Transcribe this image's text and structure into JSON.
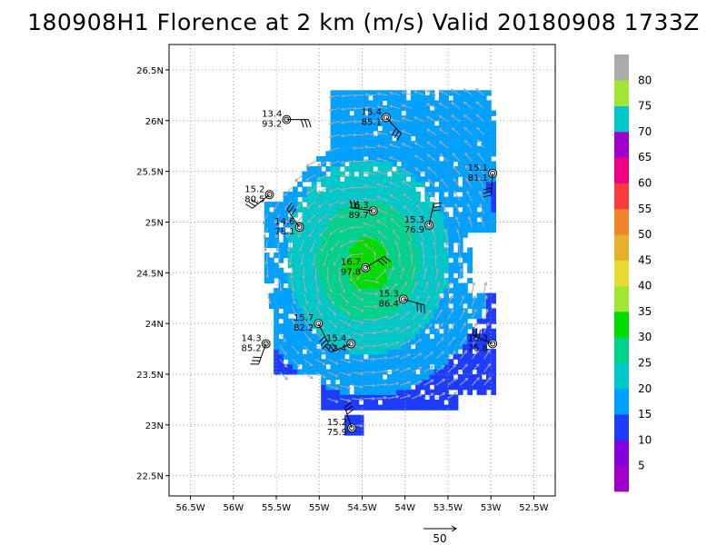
{
  "title": "180908H1 Florence at 2 km (m/s) Valid 20180908  1733Z",
  "chart_data": {
    "type": "heatmap",
    "title": "180908H1 Florence at 2 km (m/s) Valid 20180908  1733Z",
    "xlim": [
      -56.75,
      -52.25
    ],
    "ylim": [
      22.3,
      26.75
    ],
    "xticks": [
      -56.5,
      -56,
      -55.5,
      -55,
      -54.5,
      -54,
      -53.5,
      -53,
      -52.5
    ],
    "xtick_labels": [
      "56.5W",
      "56W",
      "55.5W",
      "55W",
      "54.5W",
      "54W",
      "53.5W",
      "53W",
      "52.5W"
    ],
    "yticks": [
      22.5,
      23,
      23.5,
      24,
      24.5,
      25,
      25.5,
      26,
      26.5
    ],
    "ytick_labels": [
      "22.5N",
      "23N",
      "23.5N",
      "24N",
      "24.5N",
      "25N",
      "25.5N",
      "26N",
      "26.5N"
    ],
    "grid": true,
    "center": {
      "lon": -54.46,
      "lat": 24.55
    },
    "colorbar": {
      "levels": [
        5,
        10,
        15,
        20,
        25,
        30,
        35,
        40,
        45,
        50,
        55,
        60,
        65,
        70,
        75,
        80
      ],
      "labels": [
        "5",
        "10",
        "15",
        "20",
        "25",
        "30",
        "35",
        "40",
        "45",
        "50",
        "55",
        "60",
        "65",
        "70",
        "75",
        "80"
      ],
      "colors": [
        "#a000c8",
        "#8200dc",
        "#1e3cff",
        "#00a0ff",
        "#00c8c8",
        "#00d28c",
        "#00dc00",
        "#a0e632",
        "#e6dc32",
        "#e6af2d",
        "#f08228",
        "#fa3c3c",
        "#f00082",
        "#a000c8",
        "#00c8c8",
        "#a0e632",
        "#aaaaaa"
      ]
    },
    "wind_bands": [
      {
        "r": 0.13,
        "speed": 33
      },
      {
        "r": 0.3,
        "speed": 29
      },
      {
        "r": 0.52,
        "speed": 26
      },
      {
        "r": 0.8,
        "speed": 22
      },
      {
        "r": 1.1,
        "speed": 18
      },
      {
        "r": 1.6,
        "speed": 14
      }
    ],
    "observations": [
      {
        "lon": -55.38,
        "lat": 26.01,
        "v1": "13.4",
        "v2": "93.2"
      },
      {
        "lon": -54.22,
        "lat": 26.03,
        "v1": "15.4",
        "v2": "85.1"
      },
      {
        "lon": -52.98,
        "lat": 25.48,
        "v1": "15.1",
        "v2": "81.1"
      },
      {
        "lon": -55.58,
        "lat": 25.27,
        "v1": "15.2",
        "v2": "80.5"
      },
      {
        "lon": -54.37,
        "lat": 25.11,
        "v1": "16.3",
        "v2": "89.7"
      },
      {
        "lon": -55.23,
        "lat": 24.95,
        "v1": "14.6",
        "v2": "78.1"
      },
      {
        "lon": -53.72,
        "lat": 24.97,
        "v1": "15.3",
        "v2": "76.9"
      },
      {
        "lon": -54.46,
        "lat": 24.55,
        "v1": "16.7",
        "v2": "97.8"
      },
      {
        "lon": -54.02,
        "lat": 24.24,
        "v1": "15.3",
        "v2": "86.4"
      },
      {
        "lon": -55.01,
        "lat": 24.0,
        "v1": "15.7",
        "v2": "82.2"
      },
      {
        "lon": -55.62,
        "lat": 23.8,
        "v1": "14.3",
        "v2": "85.2"
      },
      {
        "lon": -54.63,
        "lat": 23.8,
        "v1": "15.4",
        "v2": "72.4"
      },
      {
        "lon": -52.98,
        "lat": 23.8,
        "v1": "15.3",
        "v2": "75.8"
      },
      {
        "lon": -54.62,
        "lat": 22.97,
        "v1": "15.2",
        "v2": "75.9"
      }
    ],
    "reference_vector": {
      "label": "50"
    }
  }
}
